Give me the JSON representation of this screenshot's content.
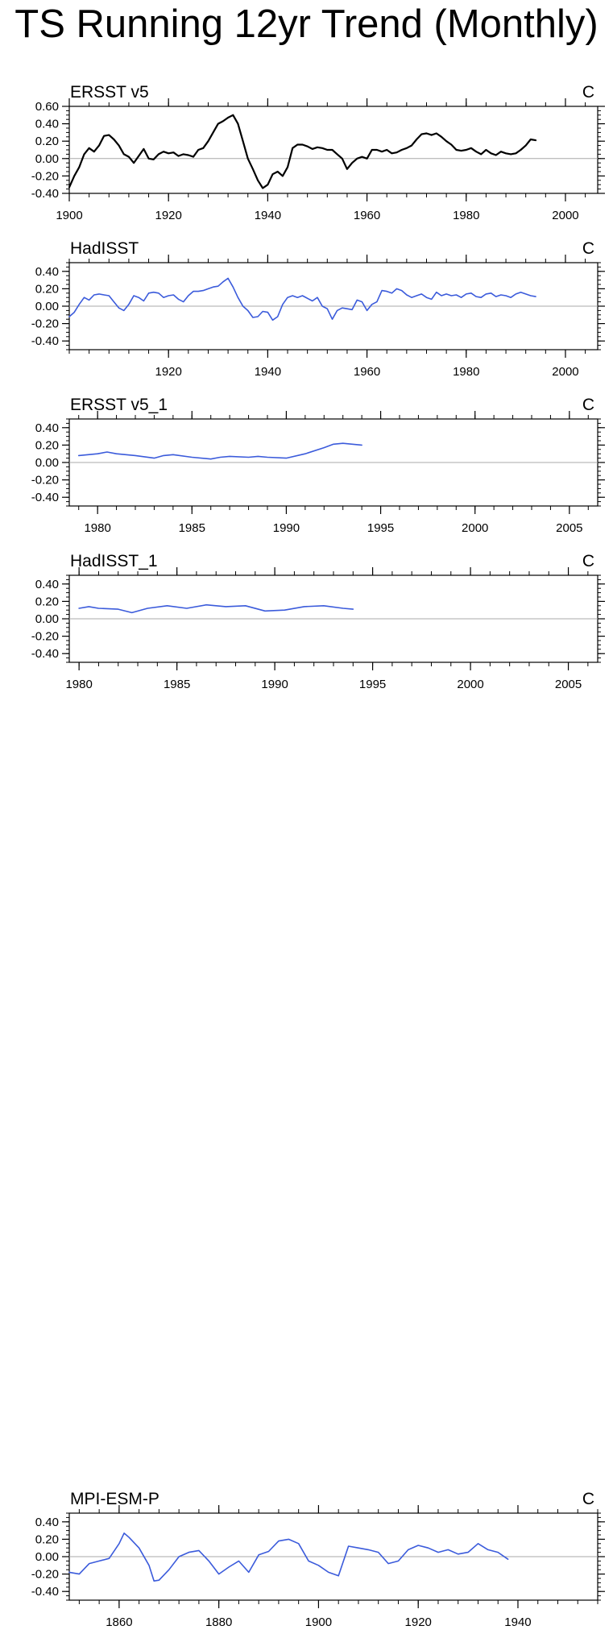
{
  "page": {
    "title": "TS Running 12yr Trend (Monthly)"
  },
  "chart_data": [
    {
      "type": "line",
      "title": "ERSST v5",
      "units": "C",
      "series_color": "#000000",
      "xlim": [
        1900,
        2006.5
      ],
      "ylim": [
        -0.4,
        0.6
      ],
      "xticks": [
        1900,
        1920,
        1940,
        1960,
        1980,
        2000
      ],
      "yticks": [
        -0.4,
        -0.2,
        0.0,
        0.2,
        0.4,
        0.6
      ],
      "ytick_labels": [
        "-0.40",
        "-0.20",
        "0.00",
        "0.20",
        "0.40",
        "0.60"
      ],
      "series": [
        {
          "x": [
            1900,
            1901,
            1902,
            1903,
            1904,
            1905,
            1906,
            1907,
            1908,
            1909,
            1910,
            1911,
            1912,
            1913,
            1914,
            1915,
            1916,
            1917,
            1918,
            1919,
            1920,
            1921,
            1922,
            1923,
            1924,
            1925,
            1926,
            1927,
            1928,
            1929,
            1930,
            1931,
            1932,
            1933,
            1934,
            1935,
            1936,
            1937,
            1938,
            1939,
            1940,
            1941,
            1942,
            1943,
            1944,
            1945,
            1946,
            1947,
            1948,
            1949,
            1950,
            1951,
            1952,
            1953,
            1954,
            1955,
            1956,
            1957,
            1958,
            1959,
            1960,
            1961,
            1962,
            1963,
            1964,
            1965,
            1966,
            1967,
            1968,
            1969,
            1970,
            1971,
            1972,
            1973,
            1974,
            1975,
            1976,
            1977,
            1978,
            1979,
            1980,
            1981,
            1982,
            1983,
            1984,
            1985,
            1986,
            1987,
            1988,
            1989,
            1990,
            1991,
            1992,
            1993,
            1994
          ],
          "y": [
            -0.33,
            -0.2,
            -0.1,
            0.05,
            0.12,
            0.08,
            0.15,
            0.26,
            0.27,
            0.22,
            0.15,
            0.05,
            0.02,
            -0.05,
            0.03,
            0.11,
            0.0,
            -0.01,
            0.05,
            0.08,
            0.06,
            0.07,
            0.03,
            0.05,
            0.04,
            0.02,
            0.1,
            0.12,
            0.2,
            0.3,
            0.4,
            0.43,
            0.47,
            0.5,
            0.4,
            0.2,
            0.0,
            -0.12,
            -0.25,
            -0.34,
            -0.3,
            -0.18,
            -0.15,
            -0.2,
            -0.1,
            0.12,
            0.16,
            0.16,
            0.14,
            0.11,
            0.13,
            0.12,
            0.1,
            0.1,
            0.05,
            0.0,
            -0.12,
            -0.05,
            0.0,
            0.02,
            0.0,
            0.1,
            0.1,
            0.08,
            0.1,
            0.06,
            0.07,
            0.1,
            0.12,
            0.15,
            0.22,
            0.28,
            0.29,
            0.27,
            0.29,
            0.25,
            0.2,
            0.16,
            0.1,
            0.09,
            0.1,
            0.12,
            0.08,
            0.05,
            0.1,
            0.06,
            0.04,
            0.08,
            0.06,
            0.05,
            0.06,
            0.1,
            0.15,
            0.22,
            0.21
          ]
        }
      ]
    },
    {
      "type": "line",
      "title": "HadISST",
      "units": "C",
      "series_color": "#3b5bdb",
      "xlim": [
        1900,
        2006.5
      ],
      "ylim": [
        -0.5,
        0.5
      ],
      "xticks": [
        1920,
        1940,
        1960,
        1980,
        2000
      ],
      "yticks": [
        -0.4,
        -0.2,
        0.0,
        0.2,
        0.4
      ],
      "ytick_labels": [
        "-0.40",
        "-0.20",
        "0.00",
        "0.20",
        "0.40"
      ],
      "series": [
        {
          "x": [
            1900,
            1901,
            1902,
            1903,
            1904,
            1905,
            1906,
            1907,
            1908,
            1909,
            1910,
            1911,
            1912,
            1913,
            1914,
            1915,
            1916,
            1917,
            1918,
            1919,
            1920,
            1921,
            1922,
            1923,
            1924,
            1925,
            1926,
            1927,
            1928,
            1929,
            1930,
            1931,
            1932,
            1933,
            1934,
            1935,
            1936,
            1937,
            1938,
            1939,
            1940,
            1941,
            1942,
            1943,
            1944,
            1945,
            1946,
            1947,
            1948,
            1949,
            1950,
            1951,
            1952,
            1953,
            1954,
            1955,
            1956,
            1957,
            1958,
            1959,
            1960,
            1961,
            1962,
            1963,
            1964,
            1965,
            1966,
            1967,
            1968,
            1969,
            1970,
            1971,
            1972,
            1973,
            1974,
            1975,
            1976,
            1977,
            1978,
            1979,
            1980,
            1981,
            1982,
            1983,
            1984,
            1985,
            1986,
            1987,
            1988,
            1989,
            1990,
            1991,
            1992,
            1993,
            1994
          ],
          "y": [
            -0.12,
            -0.07,
            0.02,
            0.1,
            0.07,
            0.13,
            0.14,
            0.13,
            0.12,
            0.05,
            -0.02,
            -0.05,
            0.02,
            0.12,
            0.1,
            0.06,
            0.15,
            0.16,
            0.15,
            0.1,
            0.12,
            0.13,
            0.08,
            0.05,
            0.12,
            0.17,
            0.17,
            0.18,
            0.2,
            0.22,
            0.23,
            0.28,
            0.32,
            0.22,
            0.1,
            0.0,
            -0.05,
            -0.13,
            -0.12,
            -0.06,
            -0.07,
            -0.16,
            -0.12,
            0.02,
            0.1,
            0.12,
            0.1,
            0.12,
            0.09,
            0.06,
            0.1,
            0.0,
            -0.03,
            -0.15,
            -0.05,
            -0.02,
            -0.03,
            -0.04,
            0.07,
            0.05,
            -0.05,
            0.02,
            0.05,
            0.18,
            0.17,
            0.15,
            0.2,
            0.18,
            0.13,
            0.1,
            0.12,
            0.14,
            0.1,
            0.08,
            0.16,
            0.12,
            0.14,
            0.12,
            0.13,
            0.1,
            0.14,
            0.15,
            0.11,
            0.1,
            0.14,
            0.15,
            0.11,
            0.13,
            0.12,
            0.1,
            0.14,
            0.16,
            0.14,
            0.12,
            0.11
          ]
        }
      ]
    },
    {
      "type": "line",
      "title": "ERSST v5_1",
      "units": "C",
      "series_color": "#3b5bdb",
      "xlim": [
        1978.5,
        2006.5
      ],
      "ylim": [
        -0.5,
        0.5
      ],
      "xticks": [
        1980,
        1985,
        1990,
        1995,
        2000,
        2005
      ],
      "yticks": [
        -0.4,
        -0.2,
        0.0,
        0.2,
        0.4
      ],
      "ytick_labels": [
        "-0.40",
        "-0.20",
        "0.00",
        "0.20",
        "0.40"
      ],
      "series": [
        {
          "x": [
            1979,
            1980,
            1980.5,
            1981,
            1982,
            1983,
            1983.5,
            1984,
            1985,
            1986,
            1986.5,
            1987,
            1988,
            1988.5,
            1989,
            1990,
            1991,
            1992,
            1992.5,
            1993,
            1994
          ],
          "y": [
            0.08,
            0.1,
            0.12,
            0.1,
            0.08,
            0.05,
            0.08,
            0.09,
            0.06,
            0.04,
            0.06,
            0.07,
            0.06,
            0.07,
            0.06,
            0.05,
            0.1,
            0.17,
            0.21,
            0.22,
            0.2
          ]
        }
      ]
    },
    {
      "type": "line",
      "title": "HadISST_1",
      "units": "C",
      "series_color": "#3b5bdb",
      "xlim": [
        1979.5,
        2006.5
      ],
      "ylim": [
        -0.5,
        0.5
      ],
      "xticks": [
        1980,
        1985,
        1990,
        1995,
        2000,
        2005
      ],
      "yticks": [
        -0.4,
        -0.2,
        0.0,
        0.2,
        0.4
      ],
      "ytick_labels": [
        "-0.40",
        "-0.20",
        "0.00",
        "0.20",
        "0.40"
      ],
      "series": [
        {
          "x": [
            1980,
            1980.5,
            1981,
            1982,
            1982.7,
            1983.5,
            1984.5,
            1985.5,
            1986.5,
            1987.5,
            1988.5,
            1989.5,
            1990.5,
            1991.5,
            1992.5,
            1993.5,
            1994
          ],
          "y": [
            0.12,
            0.14,
            0.12,
            0.11,
            0.07,
            0.12,
            0.15,
            0.12,
            0.16,
            0.14,
            0.15,
            0.09,
            0.1,
            0.14,
            0.15,
            0.12,
            0.11
          ]
        }
      ]
    },
    {
      "type": "line",
      "title": "MPI-ESM-P",
      "units": "C",
      "series_color": "#3b5bdb",
      "xlim": [
        1850,
        1956
      ],
      "ylim": [
        -0.5,
        0.5
      ],
      "xticks": [
        1860,
        1880,
        1900,
        1920,
        1940
      ],
      "yticks": [
        -0.4,
        -0.2,
        0.0,
        0.2,
        0.4
      ],
      "ytick_labels": [
        "-0.40",
        "-0.20",
        "0.00",
        "0.20",
        "0.40"
      ],
      "series": [
        {
          "x": [
            1850,
            1852,
            1854,
            1856,
            1858,
            1860,
            1861,
            1862,
            1864,
            1866,
            1867,
            1868,
            1870,
            1872,
            1874,
            1876,
            1878,
            1880,
            1882,
            1884,
            1886,
            1888,
            1890,
            1892,
            1894,
            1896,
            1898,
            1900,
            1902,
            1904,
            1906,
            1908,
            1910,
            1912,
            1914,
            1916,
            1918,
            1920,
            1922,
            1924,
            1926,
            1928,
            1930,
            1932,
            1934,
            1936,
            1938
          ],
          "y": [
            -0.18,
            -0.2,
            -0.08,
            -0.05,
            -0.02,
            0.15,
            0.27,
            0.22,
            0.1,
            -0.1,
            -0.28,
            -0.27,
            -0.15,
            0.0,
            0.05,
            0.07,
            -0.05,
            -0.2,
            -0.12,
            -0.05,
            -0.18,
            0.02,
            0.06,
            0.18,
            0.2,
            0.15,
            -0.05,
            -0.1,
            -0.18,
            -0.22,
            0.12,
            0.1,
            0.08,
            0.05,
            -0.08,
            -0.05,
            0.08,
            0.13,
            0.1,
            0.05,
            0.08,
            0.03,
            0.05,
            0.15,
            0.08,
            0.05,
            -0.03
          ]
        }
      ]
    }
  ]
}
